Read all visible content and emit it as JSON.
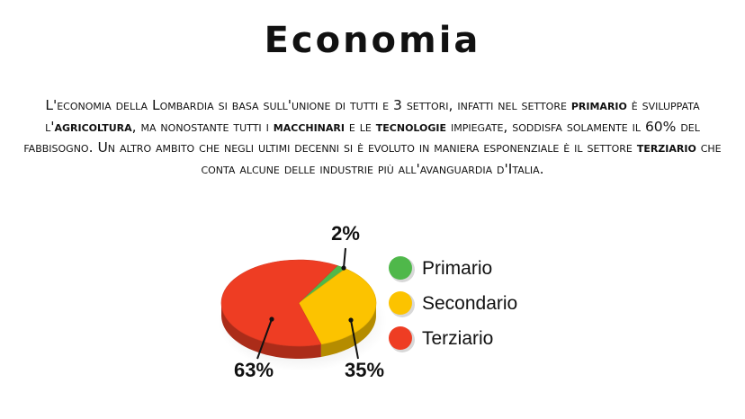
{
  "title": "Economia",
  "paragraph": [
    {
      "t": "L'economia della Lombardia si basa sull'unione di tutti e 3 settori, infatti nel settore ",
      "b": false
    },
    {
      "t": "primario",
      "b": true
    },
    {
      "t": " è sviluppata l'",
      "b": false
    },
    {
      "t": "agricoltura",
      "b": true
    },
    {
      "t": ", ma nonostante tutti i ",
      "b": false
    },
    {
      "t": "macchinari",
      "b": true
    },
    {
      "t": " e le ",
      "b": false
    },
    {
      "t": "tecnologie",
      "b": true
    },
    {
      "t": " impiegate, soddisfa solamente il 60% del fabbisogno. Un altro ambito che negli ultimi decenni si è evoluto in maniera esponenziale è il settore ",
      "b": false
    },
    {
      "t": "terziario",
      "b": true
    },
    {
      "t": " che conta alcune delle industrie più all'avanguardia d'Italia.",
      "b": false
    }
  ],
  "chart_data": {
    "type": "pie",
    "style": "3d",
    "title": "",
    "slices": [
      {
        "label": "Primario",
        "value": 2,
        "value_label": "2%",
        "color": "#4fb84a"
      },
      {
        "label": "Secondario",
        "value": 35,
        "value_label": "35%",
        "color": "#fcc300"
      },
      {
        "label": "Terziario",
        "value": 63,
        "value_label": "63%",
        "color": "#ee3d23"
      }
    ],
    "legend_position": "right"
  }
}
